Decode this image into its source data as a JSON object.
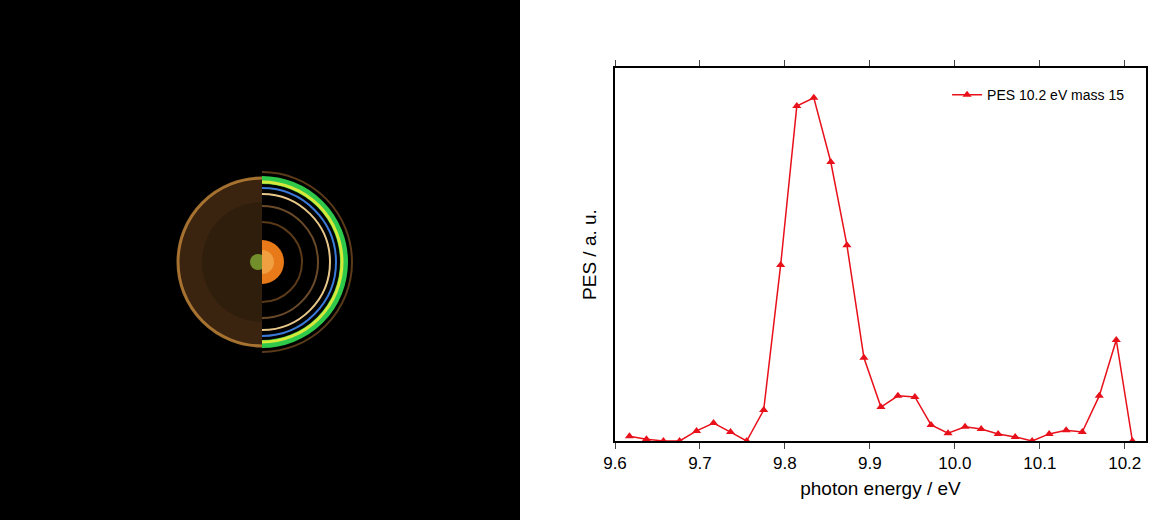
{
  "chart_data": {
    "type": "line",
    "x_label": "photon energy / eV",
    "y_label": "PES / a. u.",
    "x": [
      9.617,
      9.637,
      9.657,
      9.676,
      9.696,
      9.716,
      9.736,
      9.755,
      9.775,
      9.795,
      9.814,
      9.834,
      9.854,
      9.873,
      9.893,
      9.913,
      9.933,
      9.953,
      9.972,
      9.992,
      10.012,
      10.031,
      10.051,
      10.071,
      10.091,
      10.111,
      10.131,
      10.15,
      10.17,
      10.19,
      10.209
    ],
    "series": [
      {
        "name": "PES 10.2 eV mass 15",
        "color": "#e8101a",
        "marker": "triangle-up",
        "line_style": "solid",
        "values": [
          0.013,
          0.005,
          0,
          0,
          0.027,
          0.048,
          0.024,
          0,
          0.083,
          0.472,
          0.898,
          0.92,
          0.748,
          0.525,
          0.223,
          0.091,
          0.121,
          0.118,
          0.043,
          0.021,
          0.038,
          0.032,
          0.019,
          0.011,
          0,
          0.019,
          0.029,
          0.024,
          0.121,
          0.271,
          0
        ]
      }
    ],
    "xlim": [
      9.6,
      10.225
    ],
    "xticks": [
      {
        "value": 9.6,
        "label": "9.6"
      },
      {
        "value": 9.7,
        "label": "9.7"
      },
      {
        "value": 9.8,
        "label": "9.8"
      },
      {
        "value": 9.9,
        "label": "9.9"
      },
      {
        "value": 10.0,
        "label": "10.0"
      },
      {
        "value": 10.1,
        "label": "10.1"
      },
      {
        "value": 10.2,
        "label": "10.2"
      }
    ],
    "ylim": [
      0,
      1
    ],
    "tick_labels": "x",
    "grid": false,
    "legend": "upper right"
  }
}
